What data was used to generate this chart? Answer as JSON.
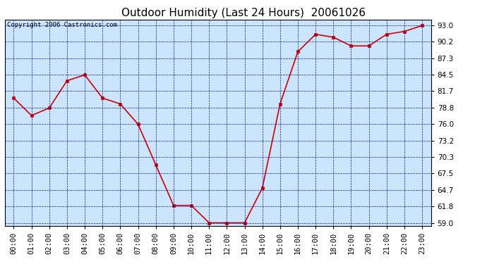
{
  "title": "Outdoor Humidity (Last 24 Hours)  20061026",
  "copyright": "Copyright 2006 Castronics.com",
  "x_labels": [
    "00:00",
    "01:00",
    "02:00",
    "03:00",
    "04:00",
    "05:00",
    "06:00",
    "07:00",
    "08:00",
    "09:00",
    "10:00",
    "11:00",
    "12:00",
    "13:00",
    "14:00",
    "15:00",
    "16:00",
    "17:00",
    "18:00",
    "19:00",
    "20:00",
    "21:00",
    "22:00",
    "23:00"
  ],
  "y_values": [
    80.5,
    77.5,
    78.8,
    83.5,
    84.5,
    80.5,
    79.5,
    76.0,
    69.0,
    62.0,
    62.0,
    59.0,
    59.0,
    59.0,
    65.0,
    79.5,
    88.5,
    91.5,
    91.0,
    89.5,
    89.5,
    91.5,
    92.0,
    93.0
  ],
  "y_ticks": [
    59.0,
    61.8,
    64.7,
    67.5,
    70.3,
    73.2,
    76.0,
    78.8,
    81.7,
    84.5,
    87.3,
    90.2,
    93.0
  ],
  "ylim": [
    58.5,
    94.0
  ],
  "line_color": "#cc0000",
  "marker_color": "#cc0000",
  "bg_color": "#cce5ff",
  "grid_color": "#0000bb",
  "title_fontsize": 11,
  "tick_fontsize": 7.5,
  "copyright_fontsize": 6.5
}
